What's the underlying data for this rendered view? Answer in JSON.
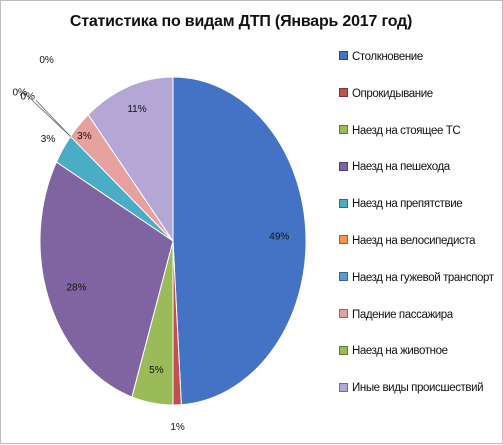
{
  "chart_data": {
    "type": "pie",
    "title": "Статистика  по видам ДТП (Январь 2017 год)",
    "categories": [
      "Столкновение",
      "Опрокидывание",
      "Наезд на стоящее ТС",
      "Наезд на пешехода",
      "Наезд на препятствие",
      "Наезд на велосипедиста",
      "Наезд на гужевой транспорт",
      "Падение пассажира",
      "Наезд на животное",
      "Иные виды происшествий"
    ],
    "values": [
      49,
      1,
      5,
      28,
      3,
      0,
      0,
      3,
      0,
      11
    ],
    "data_labels": [
      "49%",
      "1%",
      "5%",
      "28%",
      "3%",
      "0%",
      "0%",
      "3%",
      "0%",
      "11%"
    ],
    "colors": [
      "#4472C4",
      "#C0504D",
      "#9BBB59",
      "#8064A2",
      "#4BACC6",
      "#F79646",
      "#5B9BD5",
      "#E6A09E",
      "#9BBB59",
      "#B4A7D6"
    ],
    "legend_position": "right"
  }
}
